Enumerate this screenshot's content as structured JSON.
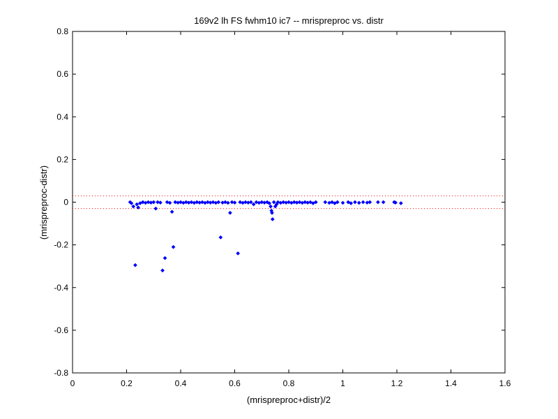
{
  "chart_data": {
    "type": "scatter",
    "title": "169v2 lh FS fwhm10 ic7 -- mrispreproc vs. distr",
    "xlabel": "(mrispreproc+distr)/2",
    "ylabel": "(mrispreproc-distr)",
    "xlim": [
      0,
      1.6
    ],
    "ylim": [
      -0.8,
      0.8
    ],
    "xticks": [
      "0",
      "0.2",
      "0.4",
      "0.6",
      "0.8",
      "1",
      "1.2",
      "1.4",
      "1.6"
    ],
    "yticks": [
      "-0.8",
      "-0.6",
      "-0.4",
      "-0.2",
      "0",
      "0.2",
      "0.4",
      "0.6",
      "0.8"
    ],
    "grid": false,
    "reference_lines": [
      {
        "y": 0.03,
        "style": "dotted",
        "color": "#ff0000"
      },
      {
        "y": -0.03,
        "style": "dotted",
        "color": "#ff0000"
      }
    ],
    "series": [
      {
        "marker_color": "#0000ff",
        "marker": "diamond",
        "points": [
          [
            0.213,
            0.0
          ],
          [
            0.218,
            -0.005
          ],
          [
            0.225,
            -0.02
          ],
          [
            0.232,
            -0.295
          ],
          [
            0.238,
            -0.01
          ],
          [
            0.243,
            -0.025
          ],
          [
            0.25,
            -0.005
          ],
          [
            0.26,
            0.0
          ],
          [
            0.27,
            -0.003
          ],
          [
            0.28,
            0.0
          ],
          [
            0.29,
            -0.002
          ],
          [
            0.3,
            0.0
          ],
          [
            0.308,
            -0.03
          ],
          [
            0.315,
            0.0
          ],
          [
            0.325,
            -0.002
          ],
          [
            0.333,
            -0.32
          ],
          [
            0.342,
            -0.262
          ],
          [
            0.35,
            0.0
          ],
          [
            0.36,
            -0.003
          ],
          [
            0.368,
            -0.045
          ],
          [
            0.373,
            -0.21
          ],
          [
            0.38,
            0.0
          ],
          [
            0.39,
            -0.002
          ],
          [
            0.4,
            0.0
          ],
          [
            0.41,
            -0.003
          ],
          [
            0.42,
            0.0
          ],
          [
            0.43,
            -0.002
          ],
          [
            0.44,
            0.0
          ],
          [
            0.45,
            -0.003
          ],
          [
            0.46,
            0.0
          ],
          [
            0.47,
            -0.002
          ],
          [
            0.48,
            0.0
          ],
          [
            0.49,
            -0.003
          ],
          [
            0.5,
            0.0
          ],
          [
            0.51,
            -0.002
          ],
          [
            0.52,
            0.0
          ],
          [
            0.53,
            -0.003
          ],
          [
            0.54,
            0.0
          ],
          [
            0.548,
            -0.165
          ],
          [
            0.555,
            -0.002
          ],
          [
            0.565,
            0.0
          ],
          [
            0.575,
            -0.003
          ],
          [
            0.583,
            -0.05
          ],
          [
            0.59,
            0.0
          ],
          [
            0.6,
            -0.002
          ],
          [
            0.612,
            -0.24
          ],
          [
            0.62,
            0.0
          ],
          [
            0.63,
            -0.003
          ],
          [
            0.64,
            0.0
          ],
          [
            0.65,
            -0.002
          ],
          [
            0.66,
            0.0
          ],
          [
            0.67,
            -0.01
          ],
          [
            0.68,
            0.0
          ],
          [
            0.69,
            -0.003
          ],
          [
            0.7,
            0.0
          ],
          [
            0.71,
            -0.002
          ],
          [
            0.72,
            0.0
          ],
          [
            0.728,
            -0.005
          ],
          [
            0.733,
            -0.02
          ],
          [
            0.736,
            -0.04
          ],
          [
            0.738,
            -0.05
          ],
          [
            0.74,
            -0.08
          ],
          [
            0.745,
            0.0
          ],
          [
            0.75,
            -0.02
          ],
          [
            0.755,
            -0.01
          ],
          [
            0.76,
            0.0
          ],
          [
            0.77,
            -0.003
          ],
          [
            0.78,
            0.0
          ],
          [
            0.79,
            -0.002
          ],
          [
            0.8,
            0.0
          ],
          [
            0.81,
            -0.003
          ],
          [
            0.82,
            0.0
          ],
          [
            0.83,
            -0.002
          ],
          [
            0.84,
            0.0
          ],
          [
            0.85,
            -0.003
          ],
          [
            0.86,
            0.0
          ],
          [
            0.87,
            -0.002
          ],
          [
            0.88,
            0.0
          ],
          [
            0.89,
            -0.005
          ],
          [
            0.9,
            0.0
          ],
          [
            0.935,
            0.0
          ],
          [
            0.95,
            -0.003
          ],
          [
            0.96,
            0.0
          ],
          [
            0.97,
            -0.005
          ],
          [
            0.98,
            0.0
          ],
          [
            1.0,
            -0.003
          ],
          [
            1.02,
            0.0
          ],
          [
            1.03,
            -0.005
          ],
          [
            1.045,
            0.0
          ],
          [
            1.06,
            -0.003
          ],
          [
            1.075,
            0.0
          ],
          [
            1.09,
            -0.002
          ],
          [
            1.1,
            0.0
          ],
          [
            1.13,
            0.0
          ],
          [
            1.15,
            0.0
          ],
          [
            1.19,
            0.0
          ],
          [
            1.195,
            -0.002
          ],
          [
            1.215,
            -0.005
          ]
        ]
      }
    ]
  },
  "colors": {
    "marker": "#0000ff",
    "reference_line": "#ff0000",
    "axes": "#000000",
    "background": "#ffffff"
  }
}
